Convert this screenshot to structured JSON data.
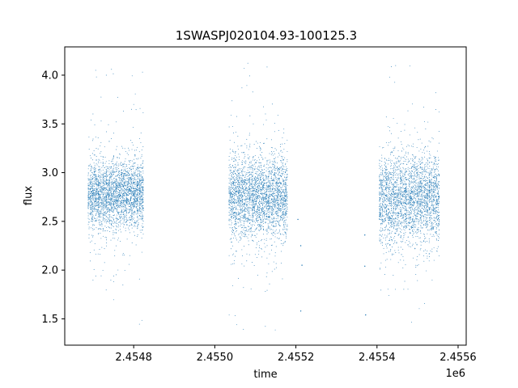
{
  "chart_data": {
    "type": "scatter",
    "title": "1SWASPJ020104.93-100125.3",
    "xlabel": "time",
    "ylabel": "flux",
    "x_offset_label": "1e6",
    "xlim": [
      2454630,
      2455620
    ],
    "ylim": [
      1.23,
      4.29
    ],
    "x_ticks": [
      2454800,
      2455000,
      2455200,
      2455400,
      2455600
    ],
    "x_tick_labels": [
      "2.4548",
      "2.4550",
      "2.4552",
      "2.4554",
      "2.4556"
    ],
    "y_ticks": [
      1.5,
      2.0,
      2.5,
      3.0,
      3.5,
      4.0
    ],
    "y_tick_labels": [
      "1.5",
      "2.0",
      "2.5",
      "3.0",
      "3.5",
      "4.0"
    ],
    "grid": false,
    "marker_color": "#1f77b4",
    "observing_seasons": [
      {
        "x_start": 2454688,
        "x_end": 2454825,
        "median_flux": 2.78,
        "spread": 0.17,
        "tail_min": 1.38,
        "tail_max": 4.08
      },
      {
        "x_start": 2455035,
        "x_end": 2455180,
        "median_flux": 2.75,
        "spread": 0.2,
        "tail_min": 1.36,
        "tail_max": 4.15
      },
      {
        "x_start": 2455405,
        "x_end": 2455555,
        "median_flux": 2.74,
        "spread": 0.22,
        "tail_min": 1.4,
        "tail_max": 4.15
      }
    ],
    "isolated_points": [
      {
        "x": 2455205,
        "y": 2.52
      },
      {
        "x": 2455212,
        "y": 2.25
      },
      {
        "x": 2455215,
        "y": 2.05
      },
      {
        "x": 2455212,
        "y": 1.58
      },
      {
        "x": 2455370,
        "y": 2.36
      },
      {
        "x": 2455370,
        "y": 2.04
      },
      {
        "x": 2455372,
        "y": 1.54
      }
    ]
  }
}
